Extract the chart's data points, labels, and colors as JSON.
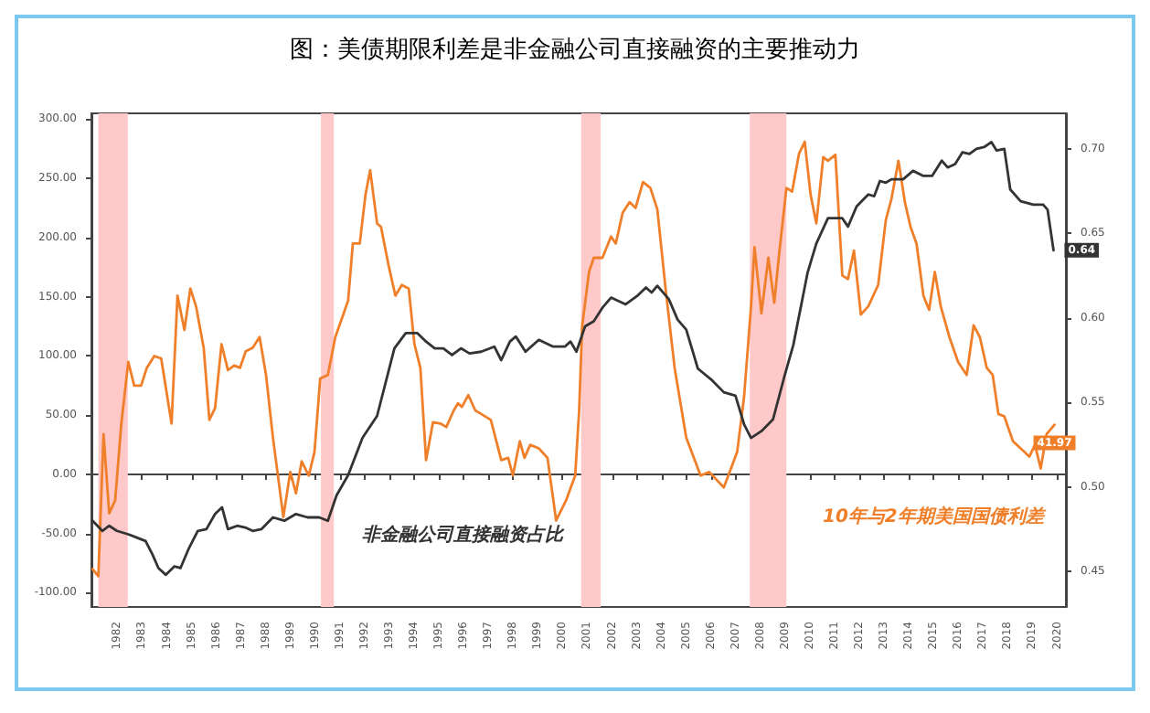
{
  "chart_data": {
    "type": "line",
    "title": "图：美债期限利差是非金融公司直接融资的主要推动力",
    "marker": "none",
    "xlim": [
      1980.95,
      2020.35
    ],
    "xticks": [
      1982,
      1983,
      1984,
      1985,
      1986,
      1987,
      1988,
      1989,
      1990,
      1991,
      1992,
      1993,
      1994,
      1995,
      1996,
      1997,
      1998,
      1999,
      2000,
      2001,
      2002,
      2003,
      2004,
      2005,
      2006,
      2007,
      2008,
      2009,
      2010,
      2011,
      2012,
      2013,
      2014,
      2015,
      2016,
      2017,
      2018,
      2019,
      2020
    ],
    "ylim": [
      -112,
      305
    ],
    "yticks": [
      {
        "value": -100,
        "label": "-100.00"
      },
      {
        "value": -50,
        "label": "-50.00"
      },
      {
        "value": 0,
        "label": "0.00"
      },
      {
        "value": 50,
        "label": "50.00"
      },
      {
        "value": 100,
        "label": "100.00"
      },
      {
        "value": 150,
        "label": "150.00"
      },
      {
        "value": 200,
        "label": "200.00"
      },
      {
        "value": 250,
        "label": "250.00"
      },
      {
        "value": 300,
        "label": "300.00"
      }
    ],
    "y2lim": [
      0.429,
      0.721
    ],
    "y2ticks": [
      {
        "value": 0.45,
        "label": "0.45"
      },
      {
        "value": 0.5,
        "label": "0.50"
      },
      {
        "value": 0.55,
        "label": "0.55"
      },
      {
        "value": 0.6,
        "label": "0.60"
      },
      {
        "value": 0.65,
        "label": "0.65"
      },
      {
        "value": 0.7,
        "label": "0.70"
      }
    ],
    "bands": [
      {
        "axis": "x",
        "from": 1981.23,
        "to": 1982.42,
        "color": "#ffc9c9"
      },
      {
        "axis": "x",
        "from": 1990.23,
        "to": 1990.75,
        "color": "#ffc9c9"
      },
      {
        "axis": "x",
        "from": 2000.75,
        "to": 2001.54,
        "color": "#ffc9c9"
      },
      {
        "axis": "x",
        "from": 2007.57,
        "to": 2009.05,
        "color": "#ffc9c9"
      }
    ],
    "series": [
      {
        "name": "10年与2年期美国国债利差",
        "color": "#f07f2a",
        "x": [
          1981.0,
          1981.23,
          1981.44,
          1981.67,
          1981.91,
          1982.16,
          1982.44,
          1982.68,
          1982.96,
          1983.19,
          1983.49,
          1983.77,
          1984.19,
          1984.43,
          1984.71,
          1984.95,
          1985.18,
          1985.49,
          1985.72,
          1985.95,
          1986.21,
          1986.47,
          1986.72,
          1986.96,
          1987.19,
          1987.47,
          1987.75,
          1988.01,
          1988.29,
          1988.71,
          1988.99,
          1989.22,
          1989.45,
          1989.74,
          1989.97,
          1990.2,
          1990.51,
          1990.81,
          1991.1,
          1991.33,
          1991.52,
          1991.8,
          1992.03,
          1992.22,
          1992.5,
          1992.66,
          1992.96,
          1993.24,
          1993.5,
          1993.78,
          1994.01,
          1994.25,
          1994.48,
          1994.76,
          1995.06,
          1995.3,
          1995.6,
          1995.77,
          1995.93,
          1996.19,
          1996.47,
          1996.71,
          1997.1,
          1997.52,
          1997.8,
          1997.99,
          1998.27,
          1998.46,
          1998.69,
          1999.04,
          1999.39,
          1999.74,
          2000.14,
          2000.51,
          2000.67,
          2000.79,
          2001.07,
          2001.26,
          2001.61,
          2001.96,
          2002.15,
          2002.43,
          2002.71,
          2002.95,
          2003.25,
          2003.55,
          2003.83,
          2004.18,
          2004.53,
          2005.0,
          2005.58,
          2005.93,
          2006.52,
          2007.06,
          2007.34,
          2007.62,
          2007.76,
          2008.04,
          2008.32,
          2008.56,
          2008.74,
          2009.05,
          2009.28,
          2009.56,
          2009.79,
          2010.03,
          2010.26,
          2010.54,
          2010.73,
          2011.03,
          2011.31,
          2011.54,
          2011.78,
          2012.06,
          2012.36,
          2012.76,
          2013.07,
          2013.3,
          2013.58,
          2013.84,
          2014.07,
          2014.31,
          2014.59,
          2014.82,
          2015.05,
          2015.29,
          2015.64,
          2015.99,
          2016.34,
          2016.62,
          2016.87,
          2017.15,
          2017.39,
          2017.62,
          2017.86,
          2018.21,
          2018.52,
          2018.87,
          2019.1,
          2019.33,
          2019.57,
          2019.89
        ],
        "values": [
          -80,
          -86,
          34,
          -33,
          -22,
          43,
          95,
          75,
          75,
          90,
          100,
          98,
          43,
          151,
          122,
          157,
          142,
          107,
          46,
          56,
          110,
          88,
          92,
          90,
          104,
          107,
          116,
          84,
          31,
          -36,
          2,
          -16,
          11,
          -1,
          19,
          81,
          84,
          116,
          133,
          147,
          195,
          195,
          236,
          257,
          212,
          209,
          177,
          151,
          160,
          157,
          110,
          90,
          12,
          44,
          43,
          40,
          54,
          60,
          57,
          67,
          54,
          51,
          46,
          12,
          14,
          -1,
          28,
          14,
          25,
          22,
          14,
          -39,
          -22,
          -1,
          54,
          125,
          171,
          183,
          183,
          201,
          195,
          221,
          230,
          225,
          247,
          242,
          224,
          154,
          90,
          31,
          -1,
          2,
          -11,
          19,
          66,
          142,
          192,
          136,
          183,
          145,
          183,
          242,
          239,
          271,
          281,
          236,
          212,
          268,
          265,
          270,
          168,
          165,
          189,
          135,
          142,
          160,
          215,
          233,
          265,
          230,
          209,
          195,
          151,
          139,
          171,
          142,
          116,
          95,
          84,
          126,
          116,
          90,
          84,
          51,
          49,
          28,
          22,
          15,
          25,
          5,
          34,
          41.97
        ],
        "value_labels": [
          null,
          null,
          null,
          null,
          null,
          null,
          null,
          null,
          null,
          null,
          null,
          null,
          null,
          null,
          null,
          null,
          null,
          null,
          null,
          null,
          null,
          null,
          null,
          null,
          null,
          null,
          null,
          null,
          null,
          null,
          null,
          null,
          null,
          null,
          null,
          null,
          null,
          null,
          null,
          null,
          null,
          null,
          null,
          null,
          null,
          null,
          null,
          null,
          null,
          null,
          null,
          null,
          null,
          null,
          null,
          null,
          null,
          null,
          null,
          null,
          null,
          null,
          null,
          null,
          null,
          null,
          null,
          null,
          null,
          null,
          null,
          null,
          null,
          null,
          null,
          null,
          null,
          null,
          null,
          null,
          null,
          null,
          null,
          null,
          null,
          null,
          null,
          null,
          null,
          null,
          null,
          null,
          null,
          null,
          null,
          null,
          null,
          null,
          null,
          null,
          null,
          null,
          null,
          null,
          null,
          null,
          null,
          null,
          null,
          null,
          null,
          null,
          null,
          null,
          null,
          null,
          null,
          null,
          null,
          null,
          null,
          null,
          null,
          null,
          null,
          null,
          null,
          null,
          null,
          null,
          null,
          null,
          null,
          null,
          null,
          null,
          null,
          null,
          null,
          null,
          null,
          "41.97"
        ]
      },
      {
        "name": "非金融公司直接融资占比",
        "color": "#333333",
        "axis": "y2",
        "x": [
          1981.0,
          1981.39,
          1981.67,
          1981.98,
          1982.44,
          1982.79,
          1983.14,
          1983.42,
          1983.66,
          1983.96,
          1984.31,
          1984.55,
          1984.9,
          1985.25,
          1985.6,
          1985.95,
          1986.23,
          1986.47,
          1986.84,
          1987.17,
          1987.47,
          1987.82,
          1988.29,
          1988.75,
          1989.22,
          1989.69,
          1990.16,
          1990.51,
          1990.86,
          1991.33,
          1991.91,
          1992.5,
          1993.2,
          1993.66,
          1994.13,
          1994.48,
          1994.83,
          1995.18,
          1995.53,
          1995.89,
          1996.24,
          1996.71,
          1997.24,
          1997.52,
          1997.87,
          1998.11,
          1998.5,
          1999.04,
          1999.62,
          2000.09,
          2000.32,
          2000.56,
          2000.91,
          2001.26,
          2001.61,
          2001.96,
          2002.55,
          2003.02,
          2003.37,
          2003.6,
          2003.83,
          2004.3,
          2004.65,
          2005.0,
          2005.47,
          2006.05,
          2006.52,
          2006.99,
          2007.34,
          2007.62,
          2008.04,
          2008.51,
          2008.98,
          2009.33,
          2009.91,
          2010.26,
          2010.73,
          2011.31,
          2011.54,
          2011.89,
          2012.36,
          2012.6,
          2012.83,
          2013.07,
          2013.3,
          2013.77,
          2014.17,
          2014.59,
          2014.94,
          2015.33,
          2015.57,
          2015.87,
          2016.17,
          2016.45,
          2016.73,
          2017.04,
          2017.34,
          2017.55,
          2017.86,
          2018.1,
          2018.52,
          2019.03,
          2019.43,
          2019.61,
          2019.85
        ],
        "values": [
          0.48,
          0.474,
          0.477,
          0.474,
          0.472,
          0.47,
          0.468,
          0.46,
          0.452,
          0.448,
          0.453,
          0.452,
          0.464,
          0.474,
          0.475,
          0.484,
          0.488,
          0.475,
          0.477,
          0.476,
          0.474,
          0.475,
          0.482,
          0.48,
          0.484,
          0.482,
          0.482,
          0.48,
          0.495,
          0.507,
          0.529,
          0.542,
          0.582,
          0.591,
          0.591,
          0.586,
          0.582,
          0.582,
          0.578,
          0.582,
          0.579,
          0.58,
          0.583,
          0.575,
          0.586,
          0.589,
          0.58,
          0.587,
          0.583,
          0.583,
          0.586,
          0.58,
          0.595,
          0.598,
          0.606,
          0.612,
          0.608,
          0.613,
          0.618,
          0.615,
          0.619,
          0.611,
          0.599,
          0.593,
          0.57,
          0.563,
          0.556,
          0.554,
          0.537,
          0.529,
          0.533,
          0.54,
          0.566,
          0.584,
          0.627,
          0.644,
          0.659,
          0.659,
          0.654,
          0.666,
          0.673,
          0.672,
          0.681,
          0.68,
          0.682,
          0.682,
          0.687,
          0.684,
          0.684,
          0.693,
          0.689,
          0.691,
          0.698,
          0.697,
          0.7,
          0.701,
          0.704,
          0.699,
          0.7,
          0.676,
          0.669,
          0.667,
          0.667,
          0.664,
          0.64
        ],
        "value_labels": [
          null,
          null,
          null,
          null,
          null,
          null,
          null,
          null,
          null,
          null,
          null,
          null,
          null,
          null,
          null,
          null,
          null,
          null,
          null,
          null,
          null,
          null,
          null,
          null,
          null,
          null,
          null,
          null,
          null,
          null,
          null,
          null,
          null,
          null,
          null,
          null,
          null,
          null,
          null,
          null,
          null,
          null,
          null,
          null,
          null,
          null,
          null,
          null,
          null,
          null,
          null,
          null,
          null,
          null,
          null,
          null,
          null,
          null,
          null,
          null,
          null,
          null,
          null,
          null,
          null,
          null,
          null,
          null,
          null,
          null,
          null,
          null,
          null,
          null,
          null,
          null,
          null,
          null,
          null,
          null,
          null,
          null,
          null,
          null,
          null,
          null,
          null,
          null,
          null,
          null,
          null,
          null,
          null,
          null,
          null,
          null,
          null,
          null,
          null,
          null,
          null,
          null,
          null,
          null,
          "0.64"
        ]
      }
    ]
  }
}
